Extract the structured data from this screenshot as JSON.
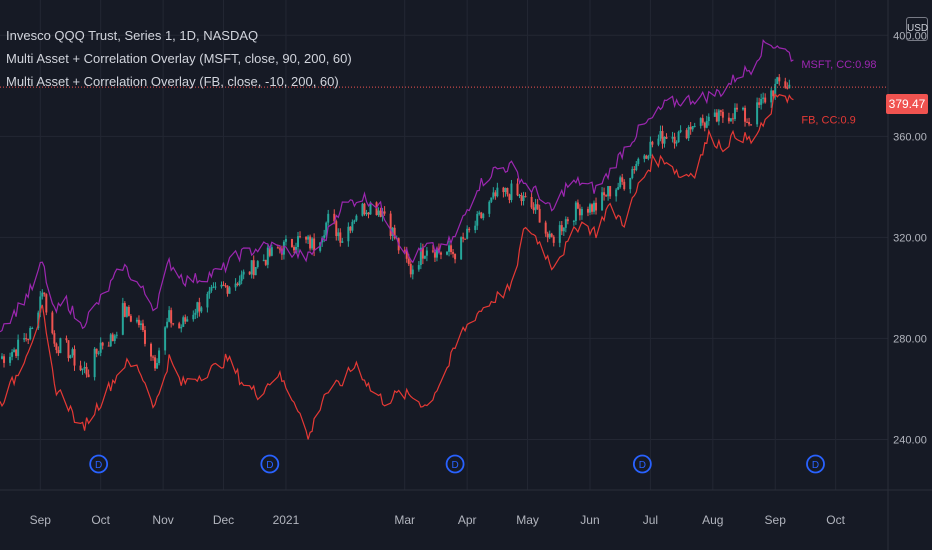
{
  "legend": {
    "line1": "Invesco QQQ Trust, Series 1, 1D, NASDAQ",
    "line2": "Multi Asset + Correlation Overlay (MSFT, close, 90, 200, 60)",
    "line3": "Multi Asset + Correlation Overlay (FB, close, -10, 200, 60)"
  },
  "currency": "USD",
  "last_price": "379.47",
  "colors": {
    "background": "#161a25",
    "grid": "#232733",
    "up": "#26a69a",
    "down": "#ef5350",
    "msft": "#9c27b0",
    "fb": "#e53935",
    "event": "#2962ff",
    "price_line": "#f05350",
    "axis_text": "#b2b5be"
  },
  "chart_data": {
    "type": "candlestick",
    "y_range": [
      220,
      410
    ],
    "y_ticks": [
      {
        "value": 400,
        "label": "400.00"
      },
      {
        "value": 360,
        "label": "360.00"
      },
      {
        "value": 320,
        "label": "320.00"
      },
      {
        "value": 280,
        "label": "280.00"
      },
      {
        "value": 240,
        "label": "240.00"
      }
    ],
    "x_ticks": [
      {
        "date": "2020-09-01",
        "label": "Sep"
      },
      {
        "date": "2020-10-01",
        "label": "Oct"
      },
      {
        "date": "2020-11-01",
        "label": "Nov"
      },
      {
        "date": "2020-12-01",
        "label": "Dec"
      },
      {
        "date": "2021-01-01",
        "label": "2021"
      },
      {
        "date": "2021-03-01",
        "label": "Mar"
      },
      {
        "date": "2021-04-01",
        "label": "Apr"
      },
      {
        "date": "2021-05-01",
        "label": "May"
      },
      {
        "date": "2021-06-01",
        "label": "Jun"
      },
      {
        "date": "2021-07-01",
        "label": "Jul"
      },
      {
        "date": "2021-08-01",
        "label": "Aug"
      },
      {
        "date": "2021-09-01",
        "label": "Sep"
      },
      {
        "date": "2021-10-01",
        "label": "Oct"
      }
    ],
    "x_range": [
      "2020-08-12",
      "2021-10-27"
    ],
    "qqq_close": [
      [
        "2020-08-12",
        272
      ],
      [
        "2020-08-20",
        276
      ],
      [
        "2020-08-28",
        283
      ],
      [
        "2020-09-02",
        300
      ],
      [
        "2020-09-08",
        278
      ],
      [
        "2020-09-14",
        276
      ],
      [
        "2020-09-21",
        268
      ],
      [
        "2020-09-25",
        267
      ],
      [
        "2020-10-01",
        278
      ],
      [
        "2020-10-07",
        280
      ],
      [
        "2020-10-12",
        291
      ],
      [
        "2020-10-20",
        286
      ],
      [
        "2020-10-28",
        271
      ],
      [
        "2020-11-04",
        288
      ],
      [
        "2020-11-09",
        284
      ],
      [
        "2020-11-17",
        292
      ],
      [
        "2020-11-25",
        297
      ],
      [
        "2020-12-03",
        301
      ],
      [
        "2020-12-10",
        304
      ],
      [
        "2020-12-18",
        310
      ],
      [
        "2020-12-28",
        315
      ],
      [
        "2021-01-07",
        319
      ],
      [
        "2021-01-15",
        317
      ],
      [
        "2021-01-22",
        327
      ],
      [
        "2021-01-29",
        320
      ],
      [
        "2021-02-05",
        330
      ],
      [
        "2021-02-12",
        333
      ],
      [
        "2021-02-19",
        330
      ],
      [
        "2021-02-26",
        316
      ],
      [
        "2021-03-04",
        307
      ],
      [
        "2021-03-12",
        317
      ],
      [
        "2021-03-19",
        314
      ],
      [
        "2021-03-26",
        314
      ],
      [
        "2021-04-06",
        326
      ],
      [
        "2021-04-15",
        336
      ],
      [
        "2021-04-23",
        338
      ],
      [
        "2021-04-30",
        334
      ],
      [
        "2021-05-07",
        329
      ],
      [
        "2021-05-12",
        318
      ],
      [
        "2021-05-20",
        327
      ],
      [
        "2021-05-27",
        332
      ],
      [
        "2021-06-04",
        332
      ],
      [
        "2021-06-10",
        338
      ],
      [
        "2021-06-18",
        342
      ],
      [
        "2021-06-25",
        351
      ],
      [
        "2021-07-02",
        357
      ],
      [
        "2021-07-09",
        361
      ],
      [
        "2021-07-16",
        360
      ],
      [
        "2021-07-23",
        366
      ],
      [
        "2021-07-30",
        365
      ],
      [
        "2021-08-06",
        368
      ],
      [
        "2021-08-13",
        370
      ],
      [
        "2021-08-19",
        366
      ],
      [
        "2021-08-27",
        375
      ],
      [
        "2021-09-03",
        381
      ],
      [
        "2021-09-08",
        380
      ]
    ],
    "series": [
      {
        "name": "MSFT, CC:0.98",
        "values": [
          [
            "2020-08-12",
            284
          ],
          [
            "2020-08-20",
            291
          ],
          [
            "2020-08-28",
            300
          ],
          [
            "2020-09-02",
            310
          ],
          [
            "2020-09-08",
            290
          ],
          [
            "2020-09-14",
            295
          ],
          [
            "2020-09-21",
            285
          ],
          [
            "2020-09-28",
            292
          ],
          [
            "2020-10-05",
            300
          ],
          [
            "2020-10-12",
            309
          ],
          [
            "2020-10-20",
            301
          ],
          [
            "2020-10-28",
            292
          ],
          [
            "2020-11-04",
            310
          ],
          [
            "2020-11-12",
            303
          ],
          [
            "2020-11-20",
            304
          ],
          [
            "2020-11-30",
            307
          ],
          [
            "2020-12-08",
            313
          ],
          [
            "2020-12-16",
            315
          ],
          [
            "2020-12-24",
            317
          ],
          [
            "2021-01-04",
            314
          ],
          [
            "2021-01-12",
            312
          ],
          [
            "2021-01-20",
            319
          ],
          [
            "2021-01-28",
            332
          ],
          [
            "2021-02-08",
            336
          ],
          [
            "2021-02-16",
            333
          ],
          [
            "2021-02-24",
            322
          ],
          [
            "2021-03-04",
            311
          ],
          [
            "2021-03-12",
            316
          ],
          [
            "2021-03-19",
            315
          ],
          [
            "2021-03-26",
            320
          ],
          [
            "2021-04-06",
            340
          ],
          [
            "2021-04-15",
            347
          ],
          [
            "2021-04-23",
            348
          ],
          [
            "2021-04-30",
            341
          ],
          [
            "2021-05-07",
            337
          ],
          [
            "2021-05-13",
            330
          ],
          [
            "2021-05-20",
            340
          ],
          [
            "2021-05-27",
            342
          ],
          [
            "2021-06-04",
            339
          ],
          [
            "2021-06-10",
            345
          ],
          [
            "2021-06-18",
            355
          ],
          [
            "2021-06-25",
            362
          ],
          [
            "2021-07-02",
            367
          ],
          [
            "2021-07-09",
            373
          ],
          [
            "2021-07-16",
            374
          ],
          [
            "2021-07-23",
            375
          ],
          [
            "2021-07-30",
            376
          ],
          [
            "2021-08-06",
            378
          ],
          [
            "2021-08-13",
            384
          ],
          [
            "2021-08-20",
            387
          ],
          [
            "2021-08-27",
            397
          ],
          [
            "2021-09-03",
            396
          ],
          [
            "2021-09-10",
            391
          ]
        ]
      },
      {
        "name": "FB, CC:0.9",
        "values": [
          [
            "2020-08-12",
            254
          ],
          [
            "2020-08-20",
            265
          ],
          [
            "2020-08-28",
            280
          ],
          [
            "2020-09-02",
            291
          ],
          [
            "2020-09-08",
            261
          ],
          [
            "2020-09-14",
            255
          ],
          [
            "2020-09-21",
            244
          ],
          [
            "2020-09-25",
            248
          ],
          [
            "2020-10-01",
            255
          ],
          [
            "2020-10-07",
            263
          ],
          [
            "2020-10-13",
            270
          ],
          [
            "2020-10-20",
            268
          ],
          [
            "2020-10-28",
            253
          ],
          [
            "2020-11-04",
            272
          ],
          [
            "2020-11-10",
            262
          ],
          [
            "2020-11-18",
            265
          ],
          [
            "2020-11-26",
            268
          ],
          [
            "2020-12-03",
            272
          ],
          [
            "2020-12-10",
            263
          ],
          [
            "2020-12-18",
            258
          ],
          [
            "2020-12-28",
            266
          ],
          [
            "2021-01-07",
            253
          ],
          [
            "2021-01-12",
            240
          ],
          [
            "2021-01-20",
            258
          ],
          [
            "2021-01-28",
            262
          ],
          [
            "2021-02-05",
            270
          ],
          [
            "2021-02-12",
            260
          ],
          [
            "2021-02-19",
            255
          ],
          [
            "2021-02-26",
            258
          ],
          [
            "2021-03-05",
            257
          ],
          [
            "2021-03-12",
            253
          ],
          [
            "2021-03-22",
            268
          ],
          [
            "2021-03-29",
            282
          ],
          [
            "2021-04-06",
            290
          ],
          [
            "2021-04-15",
            296
          ],
          [
            "2021-04-23",
            300
          ],
          [
            "2021-04-30",
            325
          ],
          [
            "2021-05-07",
            318
          ],
          [
            "2021-05-13",
            309
          ],
          [
            "2021-05-20",
            316
          ],
          [
            "2021-05-27",
            326
          ],
          [
            "2021-06-04",
            322
          ],
          [
            "2021-06-10",
            332
          ],
          [
            "2021-06-18",
            326
          ],
          [
            "2021-06-25",
            340
          ],
          [
            "2021-07-02",
            350
          ],
          [
            "2021-07-09",
            351
          ],
          [
            "2021-07-16",
            344
          ],
          [
            "2021-07-23",
            346
          ],
          [
            "2021-07-30",
            360
          ],
          [
            "2021-08-06",
            356
          ],
          [
            "2021-08-13",
            361
          ],
          [
            "2021-08-20",
            358
          ],
          [
            "2021-08-27",
            365
          ],
          [
            "2021-09-03",
            378
          ],
          [
            "2021-09-10",
            374
          ]
        ]
      }
    ],
    "event_marker_label": "D",
    "event_markers": [
      "2020-09-30",
      "2020-12-24",
      "2021-03-26",
      "2021-06-27",
      "2021-09-21"
    ],
    "last_price_value": 379.47
  }
}
